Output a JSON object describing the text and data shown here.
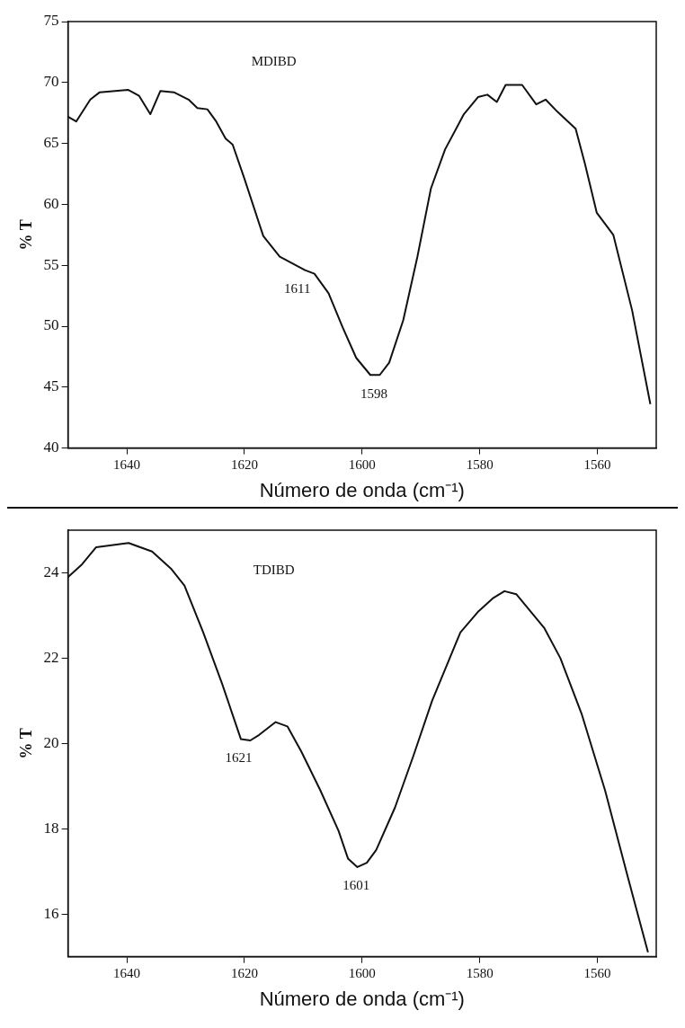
{
  "chart_data": [
    {
      "type": "line",
      "xlabel": "Número de onda (cm⁻¹)",
      "ylabel": "% T",
      "xlim": [
        1650,
        1550
      ],
      "xticks": [
        1640,
        1620,
        1600,
        1580,
        1560
      ],
      "ylim": [
        40,
        75
      ],
      "yticks": [
        40,
        45,
        50,
        55,
        60,
        65,
        70,
        75
      ],
      "grid": false,
      "legend": false,
      "marker": "none",
      "line_style": "solid",
      "annotations": [
        "MDIBD",
        {
          "text": "1611",
          "x": 1611,
          "y": 54.6
        },
        {
          "text": "1598",
          "x": 1598,
          "y": 46.0
        }
      ],
      "series": [
        {
          "color": "#111111",
          "x": [
            1650,
            1648.6,
            1646.2,
            1644.6,
            1639.8,
            1637.9,
            1636,
            1634.3,
            1632,
            1629.5,
            1628,
            1626.3,
            1624.8,
            1623.2,
            1622,
            1620,
            1616.8,
            1614,
            1609.7,
            1608.1,
            1605.7,
            1603.3,
            1601,
            1598.6,
            1597,
            1595.4,
            1593,
            1590.6,
            1588.3,
            1585.9,
            1582.7,
            1580.3,
            1578.7,
            1577.1,
            1575.6,
            1572.8,
            1570.4,
            1568.8,
            1566.8,
            1563.7,
            1562.1,
            1560.1,
            1557.3,
            1554.1,
            1551
          ],
          "values": [
            67.2,
            66.8,
            68.6,
            69.2,
            69.4,
            68.9,
            67.4,
            69.3,
            69.2,
            68.6,
            67.9,
            67.8,
            66.8,
            65.4,
            64.9,
            62.1,
            57.4,
            55.7,
            54.6,
            54.3,
            52.7,
            49.9,
            47.4,
            46.0,
            46.0,
            47.0,
            50.5,
            55.7,
            61.3,
            64.5,
            67.4,
            68.8,
            69.0,
            68.4,
            69.8,
            69.8,
            68.2,
            68.6,
            67.6,
            66.2,
            63.3,
            59.3,
            57.5,
            51.3,
            43.6
          ]
        }
      ]
    },
    {
      "type": "line",
      "xlabel": "Número de onda (cm⁻¹)",
      "ylabel": "% T",
      "xlim": [
        1650,
        1550
      ],
      "xticks": [
        1640,
        1620,
        1600,
        1580,
        1560
      ],
      "ylim": [
        15,
        25
      ],
      "yticks": [
        16,
        18,
        20,
        22,
        24
      ],
      "grid": false,
      "legend": false,
      "marker": "none",
      "line_style": "solid",
      "annotations": [
        "TDIBD",
        {
          "text": "1621",
          "x": 1621,
          "y": 20.1
        },
        {
          "text": "1601",
          "x": 1601,
          "y": 17.1
        }
      ],
      "series": [
        {
          "color": "#111111",
          "x": [
            1650,
            1647.6,
            1645.2,
            1639.7,
            1635.7,
            1632.5,
            1630.2,
            1627,
            1623.8,
            1620.6,
            1619,
            1617.5,
            1614.7,
            1612.7,
            1610.3,
            1607.1,
            1604,
            1602.4,
            1600.8,
            1599.2,
            1597.6,
            1594.4,
            1591.3,
            1588.1,
            1585.7,
            1583.3,
            1580.2,
            1577.8,
            1575.8,
            1573.8,
            1571.4,
            1569,
            1566.3,
            1562.7,
            1558.7,
            1554.8,
            1551.4
          ],
          "values": [
            23.9,
            24.2,
            24.6,
            24.7,
            24.5,
            24.1,
            23.7,
            22.6,
            21.4,
            20.1,
            20.07,
            20.2,
            20.5,
            20.4,
            19.8,
            18.9,
            17.95,
            17.3,
            17.1,
            17.2,
            17.5,
            18.5,
            19.7,
            21.0,
            21.8,
            22.6,
            23.1,
            23.4,
            23.57,
            23.5,
            23.1,
            22.7,
            22.0,
            20.7,
            18.9,
            16.85,
            15.1
          ]
        }
      ]
    }
  ]
}
